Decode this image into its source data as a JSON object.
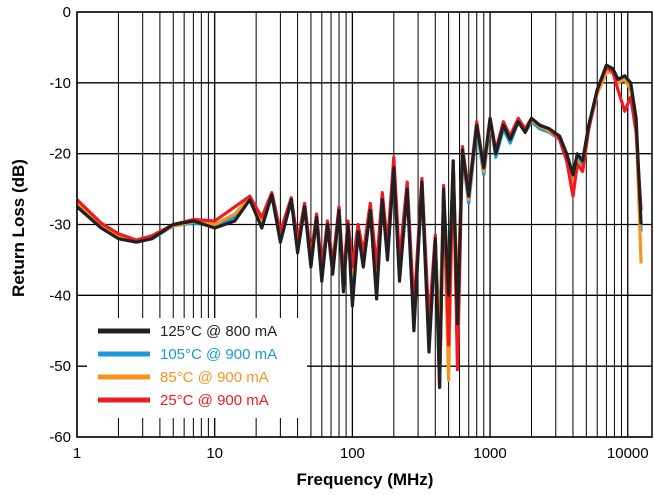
{
  "chart_data": {
    "type": "line",
    "title": "",
    "xlabel": "Frequency (MHz)",
    "ylabel": "Return Loss (dB)",
    "x_scale": "log",
    "xlim": [
      1,
      15000
    ],
    "ylim": [
      -60,
      0
    ],
    "x_tick_labels": [
      "1",
      "10",
      "100",
      "1000",
      "10000"
    ],
    "y_tick_labels": [
      "0",
      "-10",
      "-20",
      "-30",
      "-40",
      "-50",
      "-60"
    ],
    "grid": true,
    "legend_placement": "bottom-left",
    "series": [
      {
        "name": "125°C @ 800 mA",
        "color": "#231f20",
        "x": [
          1,
          1.5,
          2,
          2.7,
          3.5,
          5,
          7,
          10,
          14,
          18,
          22,
          26,
          30,
          36,
          40,
          45,
          50,
          55,
          60,
          66,
          72,
          80,
          86,
          93,
          100,
          110,
          120,
          135,
          150,
          165,
          180,
          200,
          220,
          250,
          280,
          320,
          360,
          400,
          430,
          460,
          500,
          540,
          580,
          630,
          700,
          800,
          900,
          1000,
          1100,
          1250,
          1400,
          1600,
          1800,
          2000,
          2300,
          2700,
          3200,
          3600,
          4000,
          4300,
          4700,
          5200,
          6000,
          7000,
          7800,
          8500,
          9500,
          10500,
          11500,
          12500
        ],
        "y": [
          -27.5,
          -30.5,
          -32,
          -32.5,
          -32,
          -30,
          -29.5,
          -30.5,
          -29.5,
          -26.5,
          -30.5,
          -25.8,
          -32.5,
          -26.5,
          -34,
          -27.5,
          -36,
          -29,
          -38,
          -30,
          -37,
          -28,
          -39.5,
          -30,
          -41.5,
          -31,
          -36,
          -28,
          -40.5,
          -26.5,
          -35,
          -22,
          -38,
          -25,
          -45,
          -24,
          -48,
          -32,
          -53,
          -25,
          -40,
          -21,
          -44,
          -19.5,
          -26,
          -16,
          -22,
          -15,
          -20,
          -16,
          -18,
          -15.5,
          -17,
          -15,
          -16,
          -16.5,
          -17.5,
          -20,
          -23,
          -20,
          -21,
          -16,
          -11,
          -7.5,
          -8,
          -9.5,
          -9,
          -10,
          -15,
          -30
        ]
      },
      {
        "name": "105°C @ 900 mA",
        "color": "#1b9ad7",
        "x": [
          1,
          1.5,
          2,
          2.7,
          3.5,
          5,
          7,
          10,
          14,
          18,
          22,
          26,
          30,
          36,
          40,
          45,
          50,
          55,
          60,
          66,
          72,
          80,
          86,
          93,
          100,
          110,
          120,
          135,
          150,
          165,
          180,
          200,
          220,
          250,
          280,
          320,
          360,
          400,
          430,
          460,
          500,
          540,
          580,
          630,
          700,
          800,
          900,
          1000,
          1100,
          1250,
          1400,
          1600,
          1800,
          2000,
          2300,
          2700,
          3200,
          3600,
          4000,
          4300,
          4700,
          5200,
          6000,
          7000,
          7800,
          8500,
          9500,
          10500,
          11500,
          12500
        ],
        "y": [
          -27,
          -30.2,
          -31.8,
          -32.4,
          -32,
          -30.2,
          -29.8,
          -30.2,
          -29,
          -26.5,
          -30,
          -26,
          -32,
          -26.8,
          -33.5,
          -27.5,
          -35.5,
          -29,
          -37.5,
          -30,
          -36.5,
          -28,
          -38.5,
          -30,
          -38,
          -31,
          -35,
          -28,
          -38,
          -26.5,
          -34.5,
          -22,
          -37,
          -25.5,
          -44,
          -25,
          -46.5,
          -33,
          -45,
          -26,
          -41,
          -22,
          -42,
          -20,
          -27,
          -16.5,
          -23,
          -15.5,
          -20.5,
          -16.5,
          -18.5,
          -15.5,
          -17,
          -15.5,
          -16.5,
          -17,
          -18,
          -21,
          -24,
          -20.5,
          -21.5,
          -16.5,
          -11.5,
          -8.5,
          -8.5,
          -10,
          -9.5,
          -10.5,
          -15.5,
          -31
        ]
      },
      {
        "name": "85°C @ 900 mA",
        "color": "#f7941d",
        "x": [
          1,
          1.5,
          2,
          2.7,
          3.5,
          5,
          7,
          10,
          14,
          18,
          22,
          26,
          30,
          36,
          40,
          45,
          50,
          55,
          60,
          66,
          72,
          80,
          86,
          93,
          100,
          110,
          120,
          135,
          150,
          165,
          180,
          200,
          220,
          250,
          280,
          320,
          360,
          400,
          430,
          460,
          500,
          540,
          580,
          630,
          700,
          800,
          900,
          1000,
          1100,
          1250,
          1400,
          1600,
          1800,
          2000,
          2300,
          2700,
          3200,
          3600,
          4000,
          4300,
          4700,
          5200,
          6000,
          7000,
          7800,
          8500,
          9500,
          10500,
          11500,
          12500
        ],
        "y": [
          -26.8,
          -30,
          -31.5,
          -32.3,
          -31.8,
          -30.2,
          -29.6,
          -30,
          -28.5,
          -26.2,
          -29.5,
          -25.6,
          -31.5,
          -26.5,
          -33,
          -27.3,
          -35,
          -28.8,
          -37,
          -29.8,
          -36,
          -27.8,
          -38,
          -29.8,
          -37,
          -30.5,
          -34.5,
          -27.5,
          -37,
          -26,
          -34,
          -21.5,
          -36,
          -25,
          -43,
          -24.5,
          -45,
          -32.5,
          -47,
          -25.5,
          -52,
          -21.5,
          -41,
          -19.5,
          -26.5,
          -16,
          -22.5,
          -15.5,
          -20,
          -16,
          -18,
          -15.5,
          -17,
          -15.2,
          -16.2,
          -16.8,
          -18,
          -21,
          -24.5,
          -21,
          -22.5,
          -16.5,
          -11.5,
          -8.5,
          -8.5,
          -10,
          -9.5,
          -11,
          -16,
          -35.5
        ]
      },
      {
        "name": "25°C @ 900 mA",
        "color": "#ed1c24",
        "x": [
          1,
          1.5,
          2,
          2.7,
          3.5,
          5,
          7,
          10,
          14,
          18,
          22,
          26,
          30,
          36,
          40,
          45,
          50,
          55,
          60,
          66,
          72,
          80,
          86,
          93,
          100,
          110,
          120,
          135,
          150,
          165,
          180,
          200,
          220,
          250,
          280,
          320,
          360,
          400,
          430,
          460,
          500,
          540,
          580,
          630,
          700,
          800,
          900,
          1000,
          1100,
          1250,
          1400,
          1600,
          1800,
          2000,
          2300,
          2700,
          3200,
          3600,
          4000,
          4300,
          4700,
          5200,
          6000,
          7000,
          7800,
          8500,
          9500,
          10500,
          11500,
          12500
        ],
        "y": [
          -26.5,
          -29.8,
          -31.3,
          -32.2,
          -31.6,
          -30,
          -29.3,
          -29.5,
          -27.5,
          -26,
          -29,
          -25.5,
          -31,
          -26.2,
          -32.5,
          -27,
          -34.5,
          -28.5,
          -36.5,
          -29.5,
          -35.5,
          -27.5,
          -37.5,
          -29.5,
          -36,
          -30,
          -34,
          -27,
          -36,
          -25.5,
          -33,
          -20.5,
          -35,
          -24,
          -42,
          -23.5,
          -44,
          -31.5,
          -53,
          -24.5,
          -47,
          -21,
          -50.5,
          -19,
          -25.5,
          -15.5,
          -22,
          -15,
          -19.5,
          -15.5,
          -17.5,
          -15,
          -16.5,
          -15,
          -16,
          -16.5,
          -18,
          -21,
          -26,
          -21.5,
          -22.5,
          -16.5,
          -11,
          -7.8,
          -8.5,
          -11,
          -14,
          -12,
          -17,
          -28
        ]
      }
    ]
  }
}
